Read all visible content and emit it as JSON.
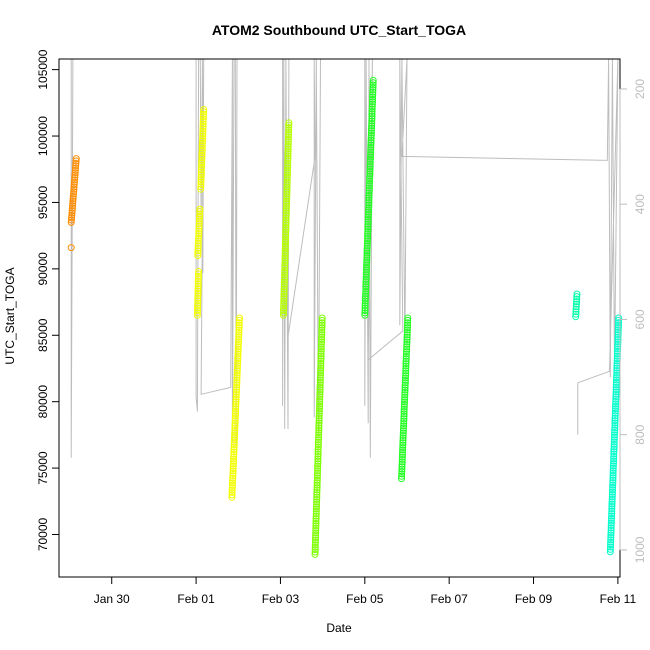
{
  "chart_data": {
    "type": "scatter",
    "title": "ATOM2 Southbound UTC_Start_TOGA",
    "xlabel": "Date",
    "ylabel": "UTC_Start_TOGA",
    "x_unit": "days (0 = Jan 30 00:00)",
    "xlim": [
      -1.25,
      12.05
    ],
    "ylim": [
      66800,
      105800
    ],
    "x_ticks": [
      {
        "value": 0,
        "label": "Jan 30"
      },
      {
        "value": 2,
        "label": "Feb 01"
      },
      {
        "value": 4,
        "label": "Feb 03"
      },
      {
        "value": 6,
        "label": "Feb 05"
      },
      {
        "value": 8,
        "label": "Feb 07"
      },
      {
        "value": 10,
        "label": "Feb 09"
      },
      {
        "value": 12,
        "label": "Feb 11"
      }
    ],
    "y_ticks": [
      70000,
      75000,
      80000,
      85000,
      90000,
      95000,
      100000,
      105000
    ],
    "y2_axis": {
      "lim": [
        1047,
        148
      ],
      "ticks": [
        200,
        400,
        600,
        800,
        1000
      ],
      "color": "#bdbdbd"
    },
    "grid": false,
    "legend": "none",
    "series": [
      {
        "color": "#ff8c00",
        "segments": [
          [
            -0.96,
            -0.84,
            93500,
            98300
          ]
        ],
        "points": [
          [
            -0.96,
            91600
          ]
        ]
      },
      {
        "color": "#f2ff00",
        "segments": [
          [
            2.03,
            2.06,
            86500,
            89800
          ],
          [
            2.04,
            2.09,
            91000,
            94500
          ],
          [
            2.11,
            2.18,
            96000,
            102000
          ],
          [
            2.85,
            3.03,
            72800,
            86300
          ]
        ],
        "points": []
      },
      {
        "color": "#b5ff00",
        "segments": [
          [
            4.07,
            4.2,
            86500,
            101000
          ]
        ],
        "points": []
      },
      {
        "color": "#7dff00",
        "segments": [
          [
            4.82,
            4.99,
            68500,
            86300
          ]
        ],
        "points": []
      },
      {
        "color": "#22ff22",
        "segments": [
          [
            6.0,
            6.2,
            86500,
            104200
          ],
          [
            6.87,
            7.02,
            74200,
            86300
          ]
        ],
        "points": []
      },
      {
        "color": "#00ffaa",
        "segments": [
          [
            11.0,
            11.03,
            86400,
            88100
          ]
        ],
        "points": []
      },
      {
        "color": "#00ffcc",
        "segments": [
          [
            11.82,
            12.02,
            68700,
            86300
          ]
        ],
        "points": []
      }
    ],
    "background_trace": {
      "color": "#bdbdbd",
      "axis": "y2",
      "path": [
        [
          -0.96,
          148
        ],
        [
          -0.96,
          840
        ],
        [
          -0.92,
          148
        ],
        [
          2.0,
          148
        ],
        [
          2.0,
          735
        ],
        [
          2.03,
          760
        ],
        [
          2.06,
          148
        ],
        [
          2.1,
          148
        ],
        [
          2.12,
          440
        ],
        [
          2.15,
          148
        ],
        [
          2.16,
          520
        ],
        [
          2.18,
          148
        ],
        [
          2.12,
          730
        ],
        [
          2.82,
          718
        ],
        [
          2.86,
          148
        ],
        [
          2.86,
          815
        ],
        [
          2.9,
          148
        ],
        [
          2.93,
          148
        ],
        [
          2.95,
          820
        ],
        [
          2.97,
          148
        ],
        [
          4.05,
          148
        ],
        [
          4.05,
          750
        ],
        [
          4.08,
          148
        ],
        [
          4.1,
          790
        ],
        [
          4.13,
          148
        ],
        [
          4.18,
          790
        ],
        [
          4.2,
          148
        ],
        [
          4.18,
          630
        ],
        [
          4.82,
          318
        ],
        [
          4.8,
          148
        ],
        [
          4.8,
          770
        ],
        [
          4.85,
          148
        ],
        [
          4.9,
          800
        ],
        [
          4.95,
          148
        ],
        [
          4.98,
          148
        ],
        [
          6.0,
          148
        ],
        [
          6.0,
          750
        ],
        [
          6.03,
          148
        ],
        [
          6.08,
          780
        ],
        [
          6.1,
          148
        ],
        [
          6.13,
          840
        ],
        [
          6.18,
          148
        ],
        [
          6.08,
          670
        ],
        [
          6.9,
          620
        ],
        [
          6.83,
          148
        ],
        [
          6.83,
          610
        ],
        [
          6.88,
          148
        ],
        [
          6.95,
          640
        ],
        [
          7.0,
          148
        ],
        [
          6.88,
          317
        ],
        [
          11.75,
          324
        ],
        [
          11.78,
          148
        ],
        [
          11.82,
          700
        ],
        [
          11.87,
          148
        ],
        [
          11.92,
          690
        ],
        [
          12.0,
          148
        ],
        [
          11.8,
          690
        ],
        [
          11.05,
          710
        ],
        [
          11.05,
          800
        ]
      ]
    }
  }
}
